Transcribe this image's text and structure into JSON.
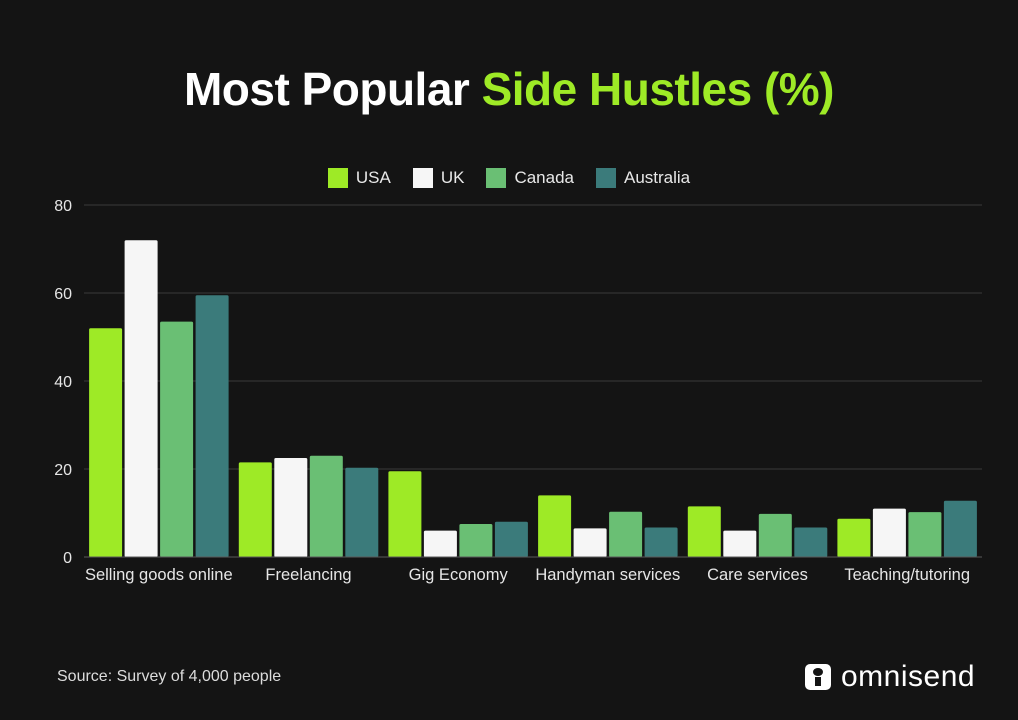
{
  "title": {
    "part1": "Most Popular ",
    "part2": "Side Hustles (%)"
  },
  "source": "Source: Survey of 4,000 people",
  "logo": {
    "text": "omnisend",
    "icon": "omnisend-logo-icon"
  },
  "colors": {
    "background": "#141414",
    "accent": "#9eea26",
    "gridline": "#3a3a3a"
  },
  "chart_data": {
    "type": "bar",
    "title": "Most Popular Side Hustles (%)",
    "categories": [
      "Selling goods online",
      "Freelancing",
      "Gig Economy",
      "Handyman services",
      "Care services",
      "Teaching/tutoring"
    ],
    "series": [
      {
        "name": "USA",
        "color": "#9eea26",
        "values": [
          52,
          21.5,
          19.5,
          14,
          11.5,
          8.7
        ]
      },
      {
        "name": "UK",
        "color": "#f6f6f6",
        "values": [
          72,
          22.5,
          6,
          6.5,
          6,
          11
        ]
      },
      {
        "name": "Canada",
        "color": "#6abf74",
        "values": [
          53.5,
          23,
          7.5,
          10.3,
          9.8,
          10.2
        ]
      },
      {
        "name": "Australia",
        "color": "#3b7b7b",
        "values": [
          59.5,
          20.3,
          8,
          6.7,
          6.7,
          12.8
        ]
      }
    ],
    "ylim": [
      0,
      80
    ],
    "yticks": [
      0,
      20,
      40,
      60,
      80
    ],
    "xlabel": "",
    "ylabel": "",
    "grid": true,
    "legend": "top-center"
  }
}
